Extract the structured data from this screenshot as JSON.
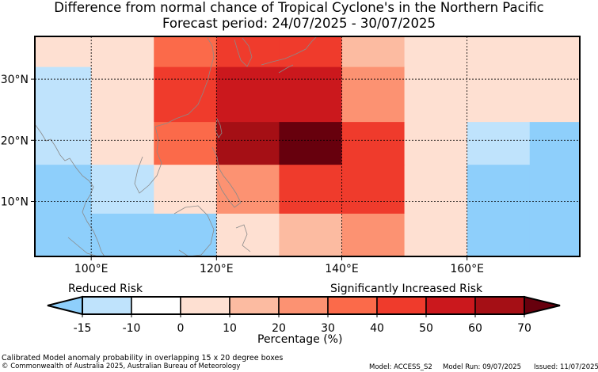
{
  "title": {
    "line1": "Difference from normal chance of Tropical Cyclone's in the Northern Pacific",
    "line2": "Forecast period: 24/07/2025 - 30/07/2025"
  },
  "map": {
    "region": "Northern Pacific",
    "lon_range": [
      91,
      178
    ],
    "lat_range": [
      1,
      37
    ],
    "lon_ticks": [
      {
        "value": 100,
        "label": "100°E"
      },
      {
        "value": 120,
        "label": "120°E"
      },
      {
        "value": 140,
        "label": "140°E"
      },
      {
        "value": 160,
        "label": "160°E"
      }
    ],
    "lat_ticks": [
      {
        "value": 30,
        "label": "30°N"
      },
      {
        "value": 20,
        "label": "20°N"
      },
      {
        "value": 10,
        "label": "10°N"
      }
    ],
    "grid": "dotted",
    "cells": [
      {
        "lon": [
          91,
          100
        ],
        "lat": [
          32,
          37
        ],
        "pct": 0
      },
      {
        "lon": [
          100,
          110
        ],
        "lat": [
          32,
          37
        ],
        "pct": 5
      },
      {
        "lon": [
          110,
          120
        ],
        "lat": [
          32,
          37
        ],
        "pct": 35
      },
      {
        "lon": [
          120,
          130
        ],
        "lat": [
          32,
          37
        ],
        "pct": 45
      },
      {
        "lon": [
          130,
          140
        ],
        "lat": [
          32,
          37
        ],
        "pct": 40
      },
      {
        "lon": [
          140,
          150
        ],
        "lat": [
          32,
          37
        ],
        "pct": 15
      },
      {
        "lon": [
          150,
          160
        ],
        "lat": [
          32,
          37
        ],
        "pct": 5
      },
      {
        "lon": [
          160,
          170
        ],
        "lat": [
          32,
          37
        ],
        "pct": 5
      },
      {
        "lon": [
          170,
          178
        ],
        "lat": [
          32,
          37
        ],
        "pct": 0
      },
      {
        "lon": [
          91,
          100
        ],
        "lat": [
          23,
          32
        ],
        "pct": -12
      },
      {
        "lon": [
          100,
          110
        ],
        "lat": [
          23,
          32
        ],
        "pct": 5
      },
      {
        "lon": [
          110,
          120
        ],
        "lat": [
          23,
          32
        ],
        "pct": 45
      },
      {
        "lon": [
          120,
          130
        ],
        "lat": [
          23,
          32
        ],
        "pct": 55
      },
      {
        "lon": [
          130,
          140
        ],
        "lat": [
          23,
          32
        ],
        "pct": 55
      },
      {
        "lon": [
          140,
          150
        ],
        "lat": [
          23,
          32
        ],
        "pct": 25
      },
      {
        "lon": [
          150,
          160
        ],
        "lat": [
          23,
          32
        ],
        "pct": 5
      },
      {
        "lon": [
          160,
          170
        ],
        "lat": [
          23,
          32
        ],
        "pct": 0
      },
      {
        "lon": [
          170,
          178
        ],
        "lat": [
          23,
          32
        ],
        "pct": 0
      },
      {
        "lon": [
          91,
          100
        ],
        "lat": [
          16,
          23
        ],
        "pct": -12
      },
      {
        "lon": [
          100,
          110
        ],
        "lat": [
          16,
          23
        ],
        "pct": 5
      },
      {
        "lon": [
          110,
          120
        ],
        "lat": [
          16,
          23
        ],
        "pct": 35
      },
      {
        "lon": [
          120,
          130
        ],
        "lat": [
          16,
          23
        ],
        "pct": 65
      },
      {
        "lon": [
          130,
          140
        ],
        "lat": [
          16,
          23
        ],
        "pct": 75
      },
      {
        "lon": [
          140,
          150
        ],
        "lat": [
          16,
          23
        ],
        "pct": 45
      },
      {
        "lon": [
          150,
          160
        ],
        "lat": [
          16,
          23
        ],
        "pct": 5
      },
      {
        "lon": [
          160,
          170
        ],
        "lat": [
          16,
          23
        ],
        "pct": -12
      },
      {
        "lon": [
          170,
          178
        ],
        "lat": [
          16,
          23
        ],
        "pct": -18
      },
      {
        "lon": [
          91,
          100
        ],
        "lat": [
          8,
          16
        ],
        "pct": -18
      },
      {
        "lon": [
          100,
          110
        ],
        "lat": [
          8,
          16
        ],
        "pct": -12
      },
      {
        "lon": [
          110,
          120
        ],
        "lat": [
          8,
          16
        ],
        "pct": 5
      },
      {
        "lon": [
          120,
          130
        ],
        "lat": [
          8,
          16
        ],
        "pct": 25
      },
      {
        "lon": [
          130,
          140
        ],
        "lat": [
          8,
          16
        ],
        "pct": 45
      },
      {
        "lon": [
          140,
          150
        ],
        "lat": [
          8,
          16
        ],
        "pct": 45
      },
      {
        "lon": [
          150,
          160
        ],
        "lat": [
          8,
          16
        ],
        "pct": 5
      },
      {
        "lon": [
          160,
          170
        ],
        "lat": [
          8,
          16
        ],
        "pct": -18
      },
      {
        "lon": [
          170,
          178
        ],
        "lat": [
          8,
          16
        ],
        "pct": -18
      },
      {
        "lon": [
          91,
          100
        ],
        "lat": [
          1,
          8
        ],
        "pct": -18
      },
      {
        "lon": [
          100,
          110
        ],
        "lat": [
          1,
          8
        ],
        "pct": -18
      },
      {
        "lon": [
          110,
          120
        ],
        "lat": [
          1,
          8
        ],
        "pct": -18
      },
      {
        "lon": [
          120,
          130
        ],
        "lat": [
          1,
          8
        ],
        "pct": 0
      },
      {
        "lon": [
          130,
          140
        ],
        "lat": [
          1,
          8
        ],
        "pct": 15
      },
      {
        "lon": [
          140,
          150
        ],
        "lat": [
          1,
          8
        ],
        "pct": 25
      },
      {
        "lon": [
          150,
          160
        ],
        "lat": [
          1,
          8
        ],
        "pct": 5
      },
      {
        "lon": [
          160,
          170
        ],
        "lat": [
          1,
          8
        ],
        "pct": -18
      },
      {
        "lon": [
          170,
          178
        ],
        "lat": [
          1,
          8
        ],
        "pct": -18
      }
    ]
  },
  "colorbar": {
    "left_label": "Reduced Risk",
    "right_label": "Significantly Increased Risk",
    "axis_label": "Percentage (%)",
    "ticks": [
      "-15",
      "-10",
      "0",
      "10",
      "20",
      "30",
      "40",
      "50",
      "60",
      "70"
    ],
    "bins": [
      {
        "from": -15,
        "to": -10,
        "color": "#bfe3fc"
      },
      {
        "from": -10,
        "to": 0,
        "color": "#ffffff"
      },
      {
        "from": 0,
        "to": 10,
        "color": "#fee0d2"
      },
      {
        "from": 10,
        "to": 20,
        "color": "#fcbba1"
      },
      {
        "from": 20,
        "to": 30,
        "color": "#fc9272"
      },
      {
        "from": 30,
        "to": 40,
        "color": "#fb6a4a"
      },
      {
        "from": 40,
        "to": 50,
        "color": "#ef3b2c"
      },
      {
        "from": 50,
        "to": 60,
        "color": "#cb181d"
      },
      {
        "from": 60,
        "to": 70,
        "color": "#a50f15"
      }
    ],
    "under_color": "#8ecffb",
    "over_color": "#67000d"
  },
  "footer": {
    "note": "Calibrated Model anomaly probability in overlapping 15 x 20 degree boxes",
    "copyright": "© Commonwealth of Australia 2025, Australian Bureau of Meteorology",
    "model": "Model: ACCESS_S2",
    "model_run": "Model Run: 09/07/2025",
    "issued": "Issued: 11/07/2025"
  }
}
